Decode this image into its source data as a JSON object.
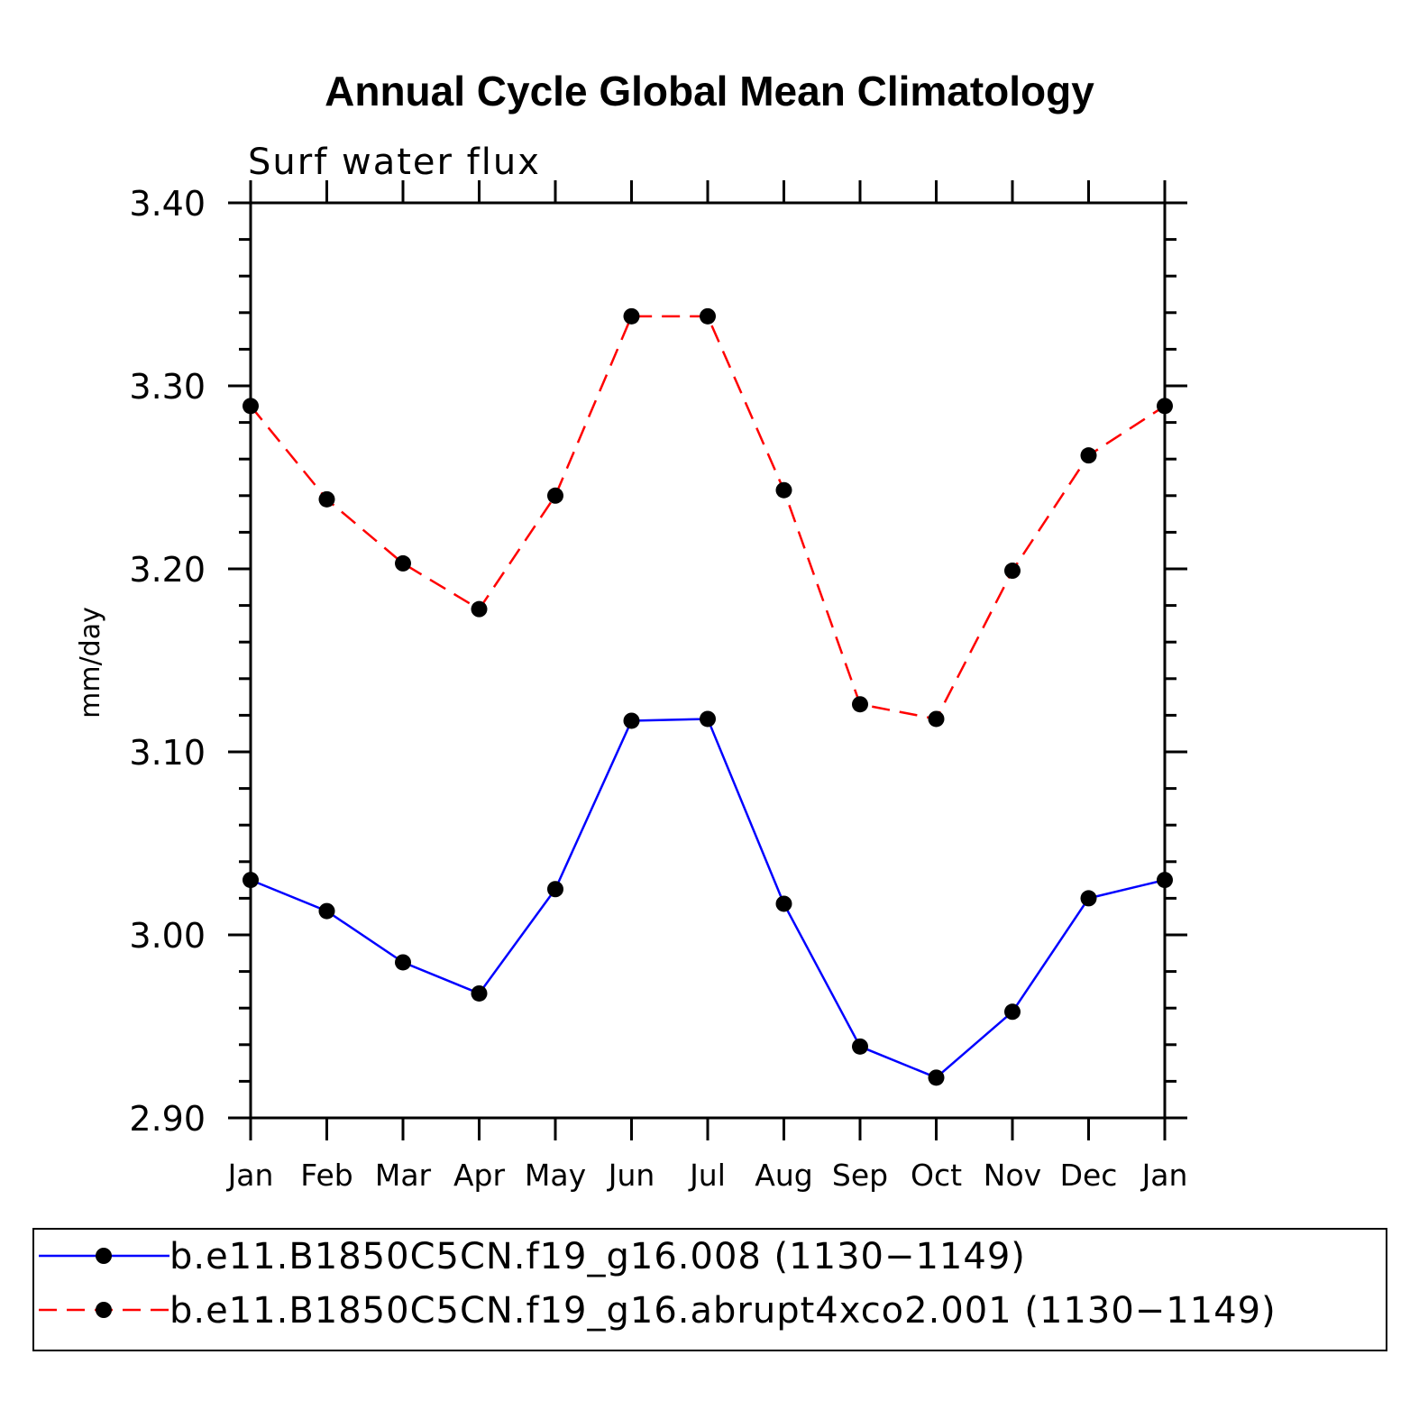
{
  "chart_data": {
    "type": "line",
    "title": "Annual Cycle Global Mean Climatology",
    "subtitle": "Surf water flux",
    "xlabel": "",
    "ylabel": "mm/day",
    "categories": [
      "Jan",
      "Feb",
      "Mar",
      "Apr",
      "May",
      "Jun",
      "Jul",
      "Aug",
      "Sep",
      "Oct",
      "Nov",
      "Dec",
      "Jan"
    ],
    "ylim": [
      2.9,
      3.4
    ],
    "yticks": [
      "2.90",
      "3.00",
      "3.10",
      "3.20",
      "3.30",
      "3.40"
    ],
    "grid": false,
    "legend_position": "bottom",
    "series": [
      {
        "name": "b.e11.B1850C5CN.f19_g16.008 (1130−1149)",
        "color": "#0000ff",
        "line_style": "solid",
        "marker": "filled-circle",
        "values": [
          3.03,
          3.013,
          2.985,
          2.968,
          3.025,
          3.117,
          3.118,
          3.017,
          2.939,
          2.922,
          2.958,
          3.02,
          3.03
        ]
      },
      {
        "name": "b.e11.B1850C5CN.f19_g16.abrupt4xco2.001 (1130−1149)",
        "color": "#ff0000",
        "line_style": "dashed",
        "marker": "filled-circle",
        "values": [
          3.289,
          3.238,
          3.203,
          3.178,
          3.24,
          3.338,
          3.338,
          3.243,
          3.126,
          3.118,
          3.199,
          3.262,
          3.289
        ]
      }
    ]
  }
}
